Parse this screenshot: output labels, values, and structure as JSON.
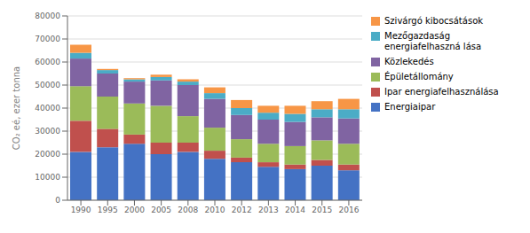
{
  "chart_data": {
    "type": "bar",
    "stacked": true,
    "categories": [
      "1990",
      "1995",
      "2000",
      "2005",
      "2008",
      "2010",
      "2012",
      "2013",
      "2014",
      "2015",
      "2016"
    ],
    "series": [
      {
        "name": "Energiaipar",
        "color": "#4472C4",
        "values": [
          21000,
          23000,
          24500,
          20000,
          21000,
          18000,
          16500,
          14500,
          13500,
          15000,
          13000
        ]
      },
      {
        "name": "Ipar energiafelhasználása",
        "color": "#C0504D",
        "values": [
          13500,
          8000,
          4000,
          5000,
          4000,
          3500,
          2000,
          2000,
          2000,
          2500,
          2500
        ]
      },
      {
        "name": "Épületállomány",
        "color": "#9BBB59",
        "values": [
          15000,
          14000,
          13500,
          16000,
          11500,
          10000,
          8000,
          8000,
          8000,
          8500,
          9000
        ]
      },
      {
        "name": "Közlekedés",
        "color": "#8064A2",
        "values": [
          12000,
          10000,
          9500,
          11000,
          13500,
          12500,
          10500,
          10500,
          10500,
          10000,
          11000
        ]
      },
      {
        "name": "Mezőgazdaság\nenergiafelhaszná lása",
        "color": "#4BACC6",
        "values": [
          2500,
          1500,
          1000,
          1500,
          1500,
          2500,
          3000,
          3000,
          3500,
          3500,
          4000
        ]
      },
      {
        "name": "Szivárgó kibocsátások",
        "color": "#F79646",
        "values": [
          3500,
          500,
          500,
          1000,
          1000,
          2500,
          3500,
          3000,
          3500,
          3500,
          4500
        ]
      }
    ],
    "ylabel": "CO₂ eé, ezer tonna",
    "ylim": [
      0,
      80000
    ],
    "yticks": [
      0,
      10000,
      20000,
      30000,
      40000,
      50000,
      60000,
      70000,
      80000
    ],
    "grid": true,
    "legend": "right"
  }
}
